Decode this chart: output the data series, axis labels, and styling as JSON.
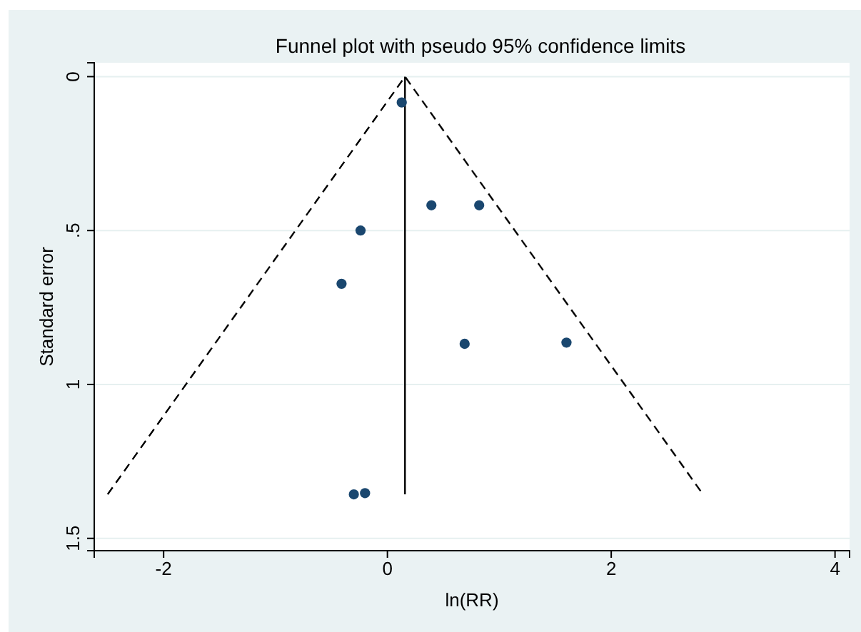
{
  "chart_data": {
    "type": "scatter",
    "title": "Funnel plot with pseudo 95% confidence limits",
    "xlabel": "ln(RR)",
    "ylabel": "Standard error",
    "xlim": [
      -2.62,
      4.13
    ],
    "xticks": [
      -2,
      0,
      2,
      4
    ],
    "ylim": [
      1.54,
      -0.045
    ],
    "yticks": [
      0,
      {
        "value": 0.5,
        "label": ".5"
      },
      1,
      1.5
    ],
    "grid": "y",
    "series": [
      {
        "type": "line",
        "color": "#000000",
        "line_style": "dashed",
        "marker": "none",
        "x": [
          -2.5,
          0.157,
          2.82
        ],
        "values": [
          1.357,
          0,
          1.357
        ]
      },
      {
        "type": "line",
        "color": "#000000",
        "line_style": "solid",
        "marker": "none",
        "x": [
          0.157,
          0.157
        ],
        "values": [
          0,
          1.357
        ]
      },
      {
        "color": "#1a476f",
        "marker": "circle",
        "x": [
          0.128,
          0.393,
          0.82,
          -0.24,
          -0.41,
          0.69,
          1.6,
          -0.3,
          -0.2
        ],
        "values": [
          0.084,
          0.418,
          0.418,
          0.5,
          0.673,
          0.868,
          0.864,
          1.357,
          1.353
        ]
      }
    ]
  }
}
